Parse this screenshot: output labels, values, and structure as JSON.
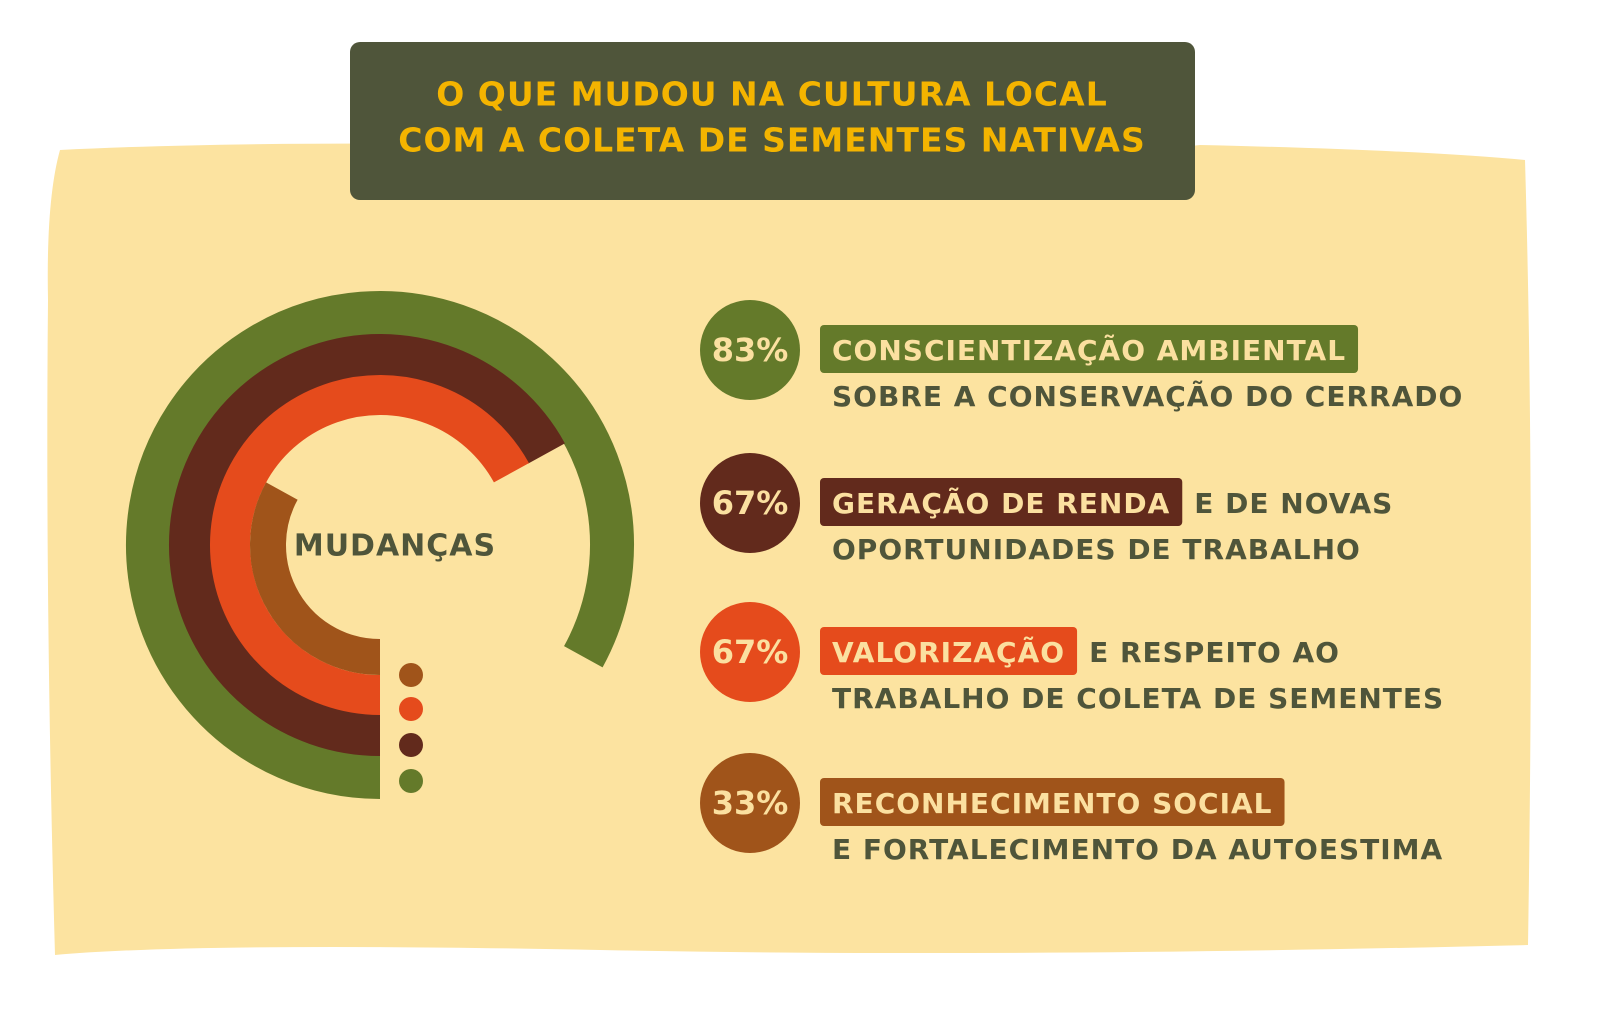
{
  "chart_data": {
    "type": "radial-bar",
    "title_lines": [
      "O QUE MUDOU NA CULTURA LOCAL",
      "COM A COLETA DE SEMENTES NATIVAS"
    ],
    "center_label": "MUDANÇAS",
    "categories": [
      "CONSCIENTIZAÇÃO AMBIENTAL",
      "GERAÇÃO DE RENDA",
      "VALORIZAÇÃO",
      "RECONHECIMENTO SOCIAL"
    ],
    "values": [
      83,
      67,
      67,
      33
    ],
    "value_labels": [
      "83%",
      "67%",
      "67%",
      "33%"
    ],
    "colors": [
      "#647a2a",
      "#622a1c",
      "#e54b1c",
      "#a0541a"
    ],
    "details": [
      {
        "line2": "SOBRE A CONSERVAÇÃO DO CERRADO"
      },
      {
        "after": "E DE NOVAS",
        "line2": "OPORTUNIDADES DE TRABALHO"
      },
      {
        "after": "E RESPEITO AO",
        "line2": "TRABALHO DE COLETA DE SEMENTES"
      },
      {
        "line2": "E FORTALECIMENTO DA AUTOESTIMA"
      }
    ],
    "ylim": [
      0,
      100
    ]
  }
}
